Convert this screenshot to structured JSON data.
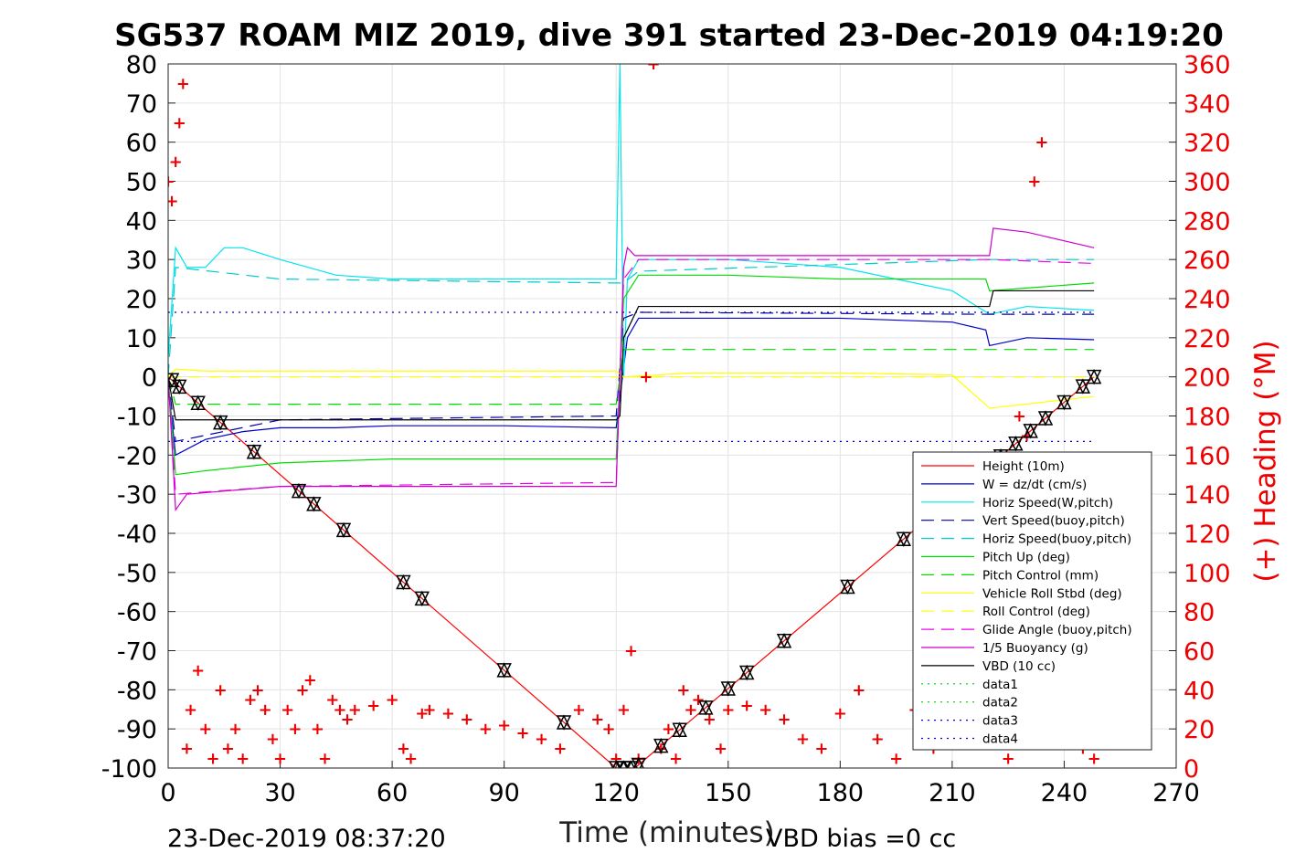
{
  "chart_data": {
    "type": "line",
    "title": "SG537 ROAM MIZ 2019, dive 391 started 23-Dec-2019 04:19:20",
    "xlabel": "Time (minutes)",
    "ylabel": "",
    "ylabel_right": "(+) Heading (°M)",
    "footer_left": "23-Dec-2019 08:37:20",
    "footer_right": "VBD bias =0 cc",
    "xlim": [
      0,
      270
    ],
    "ylim": [
      -100,
      80
    ],
    "y2lim": [
      0,
      360
    ],
    "xticks": [
      "0",
      "30",
      "60",
      "90",
      "120",
      "150",
      "180",
      "210",
      "240",
      "270"
    ],
    "yticks": [
      "80",
      "70",
      "60",
      "50",
      "40",
      "30",
      "20",
      "10",
      "0",
      "-10",
      "-20",
      "-30",
      "-40",
      "-50",
      "-60",
      "-70",
      "-80",
      "-90",
      "-100"
    ],
    "y2ticks": [
      "360",
      "340",
      "320",
      "300",
      "280",
      "260",
      "240",
      "220",
      "200",
      "180",
      "160",
      "140",
      "120",
      "100",
      "80",
      "60",
      "40",
      "20",
      "0"
    ],
    "grid": true,
    "legend_position": "lower-right",
    "series": [
      {
        "name": "Height (10m)",
        "color": "#ff0000",
        "style": "solid",
        "x": [
          0,
          120,
          122,
          125,
          248
        ],
        "y": [
          0,
          -100,
          -100,
          -100,
          0
        ]
      },
      {
        "name": "W = dz/dt (cm/s)",
        "color": "#0000cc",
        "style": "solid",
        "x": [
          0,
          2,
          10,
          20,
          30,
          45,
          60,
          90,
          120,
          123,
          126,
          150,
          180,
          210,
          219,
          220,
          230,
          248
        ],
        "y": [
          -2,
          -20,
          -16,
          -14,
          -13,
          -13,
          -12.5,
          -12.5,
          -13,
          10,
          15,
          15,
          15,
          14,
          12,
          8,
          10,
          9.5
        ]
      },
      {
        "name": "Horiz Speed(W,pitch)",
        "color": "#00e5ee",
        "style": "solid",
        "x": [
          0,
          2,
          5,
          10,
          15,
          20,
          30,
          45,
          60,
          90,
          120,
          121,
          122,
          123,
          126,
          150,
          180,
          210,
          220,
          230,
          248
        ],
        "y": [
          5,
          33,
          28,
          28,
          33,
          33,
          30,
          26,
          25,
          25,
          25,
          80,
          0,
          25,
          30,
          30,
          28,
          22,
          16,
          18,
          17
        ]
      },
      {
        "name": "Vert Speed(buoy,pitch)",
        "color": "#0000aa",
        "style": "dashed",
        "x": [
          0,
          2,
          30,
          120,
          122,
          126,
          220,
          248
        ],
        "y": [
          0,
          -16.5,
          -11,
          -10,
          15,
          16.5,
          16,
          16
        ]
      },
      {
        "name": "Horiz Speed(buoy,pitch)",
        "color": "#00cccc",
        "style": "dashed",
        "x": [
          0,
          2,
          30,
          120,
          122,
          126,
          220,
          248
        ],
        "y": [
          0,
          28,
          25,
          24,
          24,
          27,
          30,
          30
        ]
      },
      {
        "name": "Pitch Up (deg)",
        "color": "#00dd00",
        "style": "solid",
        "x": [
          0,
          2,
          10,
          30,
          60,
          90,
          120,
          122,
          126,
          150,
          180,
          210,
          219,
          220,
          248
        ],
        "y": [
          0,
          -25,
          -24,
          -22,
          -21,
          -21,
          -21,
          20,
          26,
          26,
          25,
          25,
          25,
          22,
          24
        ]
      },
      {
        "name": "Pitch Control (mm)",
        "color": "#00dd00",
        "style": "dashed",
        "x": [
          0,
          2,
          120,
          122,
          248
        ],
        "y": [
          0,
          -7,
          -7,
          7,
          7
        ]
      },
      {
        "name": "Vehicle Roll Stbd (deg)",
        "color": "#ffff00",
        "style": "solid",
        "x": [
          0,
          2,
          10,
          30,
          60,
          90,
          120,
          122,
          140,
          180,
          210,
          220,
          248
        ],
        "y": [
          0,
          2,
          1.5,
          1.5,
          1.5,
          1.5,
          1.5,
          0,
          1,
          1,
          0.5,
          -8,
          -5
        ]
      },
      {
        "name": "Roll Control (deg)",
        "color": "#ffff00",
        "style": "dashed",
        "x": [
          0,
          248
        ],
        "y": [
          0,
          0
        ]
      },
      {
        "name": "Glide Angle (buoy,pitch)",
        "color": "#ee00ee",
        "style": "dashed",
        "x": [
          0,
          2,
          30,
          120,
          122,
          126,
          220,
          248
        ],
        "y": [
          0,
          -30,
          -28,
          -27,
          25,
          30,
          30,
          29
        ]
      },
      {
        "name": "1/5 Buoyancy (g)",
        "color": "#cc00cc",
        "style": "solid",
        "x": [
          0,
          2,
          5,
          30,
          120,
          121,
          122,
          123,
          125,
          220,
          221,
          230,
          248
        ],
        "y": [
          0,
          -34,
          -30,
          -28,
          -28,
          0,
          28,
          33,
          31,
          31,
          38,
          37,
          33
        ]
      },
      {
        "name": "VBD (10 cc)",
        "color": "#000000",
        "style": "solid",
        "x": [
          0,
          2,
          120,
          121,
          122,
          126,
          220,
          221,
          248
        ],
        "y": [
          0,
          -11,
          -11,
          -10,
          10,
          18,
          18,
          22,
          22
        ]
      },
      {
        "name": "data1",
        "color": "#00cc00",
        "style": "dotted",
        "x": [],
        "y": []
      },
      {
        "name": "data2",
        "color": "#00cc00",
        "style": "dotted",
        "x": [],
        "y": []
      },
      {
        "name": "data3",
        "color": "#0000cc",
        "style": "dotted",
        "x": [
          0,
          248
        ],
        "y": [
          16.5,
          16.5
        ]
      },
      {
        "name": "data4",
        "color": "#0000cc",
        "style": "dotted",
        "x": [
          0,
          248
        ],
        "y": [
          -16.5,
          -16.5
        ]
      }
    ],
    "heading_series": {
      "axis": "right",
      "color": "#ee0000",
      "marker": "+",
      "x": [
        0,
        1,
        2,
        3,
        4,
        5,
        6,
        8,
        10,
        12,
        14,
        16,
        18,
        20,
        22,
        24,
        26,
        28,
        30,
        32,
        34,
        36,
        38,
        40,
        42,
        44,
        46,
        48,
        50,
        55,
        60,
        63,
        65,
        68,
        70,
        75,
        80,
        85,
        90,
        95,
        100,
        105,
        110,
        115,
        118,
        120,
        122,
        124,
        126,
        128,
        130,
        132,
        134,
        136,
        138,
        140,
        142,
        145,
        148,
        150,
        155,
        160,
        165,
        170,
        175,
        180,
        185,
        190,
        195,
        200,
        205,
        210,
        215,
        220,
        225,
        228,
        230,
        232,
        234,
        236,
        240,
        245,
        248
      ],
      "y": [
        300,
        290,
        310,
        330,
        350,
        10,
        30,
        50,
        20,
        5,
        40,
        10,
        20,
        5,
        35,
        40,
        30,
        15,
        5,
        30,
        20,
        40,
        45,
        20,
        5,
        35,
        30,
        25,
        30,
        32,
        35,
        10,
        5,
        28,
        30,
        28,
        25,
        20,
        22,
        18,
        15,
        10,
        30,
        25,
        20,
        5,
        30,
        60,
        5,
        200,
        360,
        10,
        20,
        5,
        40,
        30,
        35,
        25,
        10,
        30,
        32,
        30,
        25,
        15,
        10,
        28,
        40,
        15,
        5,
        30,
        10,
        25,
        30,
        20,
        5,
        180,
        170,
        300,
        320,
        30,
        20,
        10,
        5
      ]
    },
    "markers": {
      "symbols": [
        "triangle-down",
        "triangle-up",
        "triangle-left"
      ],
      "x": [
        1,
        3,
        8,
        14,
        23,
        35,
        39,
        47,
        63,
        68,
        90,
        106,
        120,
        122,
        124,
        126,
        132,
        137,
        144,
        150,
        155,
        165,
        182,
        197,
        220,
        223,
        227,
        231,
        235,
        240,
        245,
        248
      ]
    }
  }
}
